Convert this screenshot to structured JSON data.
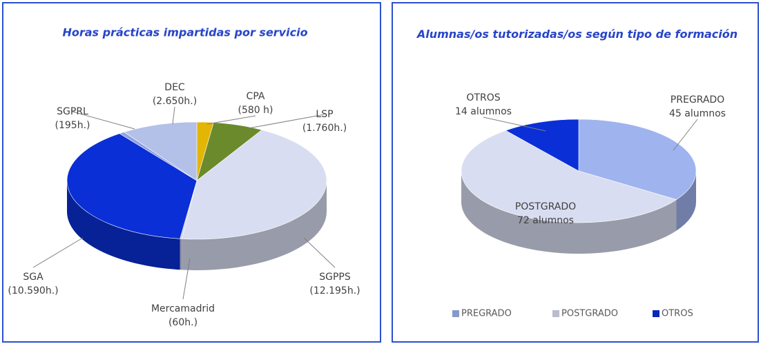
{
  "chart_data": [
    {
      "type": "pie3d",
      "title": "Horas prácticas impartidas por servicio",
      "categories": [
        "CPA",
        "LSP",
        "SGPPS",
        "Mercamadrid",
        "SGA",
        "SGPRL",
        "DEC"
      ],
      "values": [
        580,
        1760,
        12195,
        60,
        10590,
        195,
        2650
      ],
      "value_labels": [
        "(580 h)",
        "(1.760h.)",
        "(12.195h.)",
        "(60h.)",
        "(10.590h.)",
        "(195h.)",
        "(2.650h.)"
      ],
      "colors": [
        "#e3b505",
        "#6b8a2c",
        "#d9ddf1",
        "#c3cbe6",
        "#0a2fd6",
        "#8ea2e4",
        "#b3c0e8"
      ],
      "legend": false
    },
    {
      "type": "pie3d",
      "title": "Alumnas/os tutorizadas/os según tipo de formación",
      "categories": [
        "PREGRADO",
        "POSTGRADO",
        "OTROS"
      ],
      "values": [
        45,
        72,
        14
      ],
      "value_labels": [
        "45 alumnos",
        "72 alumnos",
        "14 alumnos"
      ],
      "colors": [
        "#9fb3ee",
        "#d9ddf1",
        "#0a2fd6"
      ],
      "legend": true
    }
  ]
}
